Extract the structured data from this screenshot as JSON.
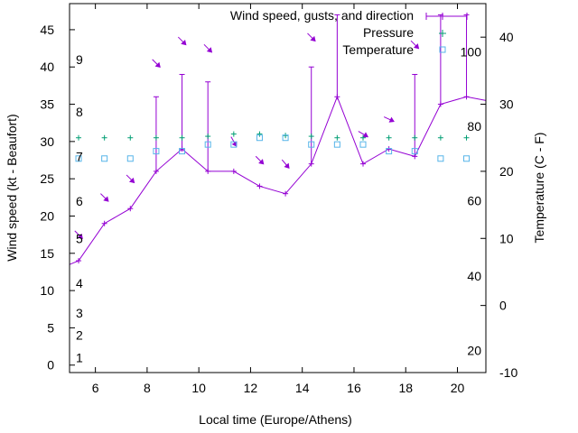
{
  "chart_data": {
    "type": "line",
    "xlabel": "Local time (Europe/Athens)",
    "ylabel": "Wind speed (kt - Beaufort)",
    "y2label": "Temperature (C - F)",
    "xlim": [
      5,
      21.1
    ],
    "ylim": [
      -1,
      48.5
    ],
    "y2lim": [
      -10,
      45
    ],
    "x_ticks": [
      6,
      8,
      10,
      12,
      14,
      16,
      18,
      20
    ],
    "y_ticks": [
      0,
      5,
      10,
      15,
      20,
      25,
      30,
      35,
      40,
      45
    ],
    "y2_ticks": [
      -10,
      0,
      10,
      20,
      30,
      40
    ],
    "beaufort_labels": [
      {
        "label": "1",
        "y": 1
      },
      {
        "label": "2",
        "y": 4
      },
      {
        "label": "3",
        "y": 7
      },
      {
        "label": "4",
        "y": 11
      },
      {
        "label": "5",
        "y": 17
      },
      {
        "label": "6",
        "y": 22
      },
      {
        "label": "7",
        "y": 28
      },
      {
        "label": "8",
        "y": 34
      },
      {
        "label": "9",
        "y": 41
      }
    ],
    "fahrenheit_labels": [
      {
        "label": "20",
        "y2": -6.7
      },
      {
        "label": "40",
        "y2": 4.4
      },
      {
        "label": "60",
        "y2": 15.6
      },
      {
        "label": "80",
        "y2": 26.7
      },
      {
        "label": "100",
        "y2": 37.8
      }
    ],
    "legend": {
      "position": "top-right",
      "wind": "Wind speed, gusts, and direction",
      "pressure": "Pressure",
      "temperature": "Temperature"
    },
    "colors": {
      "wind": "#9400d3",
      "pressure": "#009e73",
      "temperature": "#56b4e9"
    },
    "wind": {
      "x": [
        5,
        5.35,
        6.35,
        7.35,
        8.35,
        9.35,
        10.35,
        11.35,
        12.35,
        13.35,
        14.35,
        15.35,
        16.35,
        17.35,
        18.35,
        19.35,
        20.35,
        21.1
      ],
      "speed": [
        13.5,
        14,
        19,
        21,
        26,
        29,
        26,
        26,
        24,
        23,
        27,
        36,
        27,
        29,
        28,
        35,
        36,
        35.5
      ],
      "gust": [
        null,
        null,
        null,
        null,
        36,
        39,
        38,
        null,
        null,
        null,
        40,
        47,
        null,
        null,
        39,
        47,
        47,
        null
      ]
    },
    "direction_arrows": [
      {
        "x": 5.35,
        "y": 17.5,
        "dir": 315
      },
      {
        "x": 6.35,
        "y": 22.5,
        "dir": 315
      },
      {
        "x": 7.35,
        "y": 25,
        "dir": 315
      },
      {
        "x": 8.35,
        "y": 40.5,
        "dir": 315
      },
      {
        "x": 9.35,
        "y": 43.5,
        "dir": 315
      },
      {
        "x": 10.35,
        "y": 42.5,
        "dir": 315
      },
      {
        "x": 11.35,
        "y": 30,
        "dir": 330
      },
      {
        "x": 12.35,
        "y": 27.5,
        "dir": 315
      },
      {
        "x": 13.35,
        "y": 27,
        "dir": 320
      },
      {
        "x": 14.35,
        "y": 44,
        "dir": 315
      },
      {
        "x": 16.35,
        "y": 31,
        "dir": 300
      },
      {
        "x": 17.35,
        "y": 33,
        "dir": 295
      },
      {
        "x": 18.35,
        "y": 43,
        "dir": 315
      }
    ],
    "pressure": {
      "x": [
        5.35,
        6.35,
        7.35,
        8.35,
        9.35,
        10.35,
        11.35,
        12.35,
        13.35,
        14.35,
        15.35,
        16.35,
        17.35,
        18.35,
        19.35,
        20.35
      ],
      "y": [
        30.5,
        30.5,
        30.5,
        30.5,
        30.5,
        30.7,
        31,
        31,
        30.8,
        30.7,
        30.5,
        30.5,
        30.5,
        30.5,
        30.5,
        30.5
      ]
    },
    "temperature": {
      "x": [
        5.35,
        6.35,
        7.35,
        8.35,
        9.35,
        10.35,
        11.35,
        12.35,
        13.35,
        14.35,
        15.35,
        16.35,
        17.35,
        18.35,
        19.35,
        20.35
      ],
      "y": [
        21.9,
        21.9,
        21.9,
        23,
        23,
        24,
        24,
        25,
        25,
        24,
        24,
        24,
        23,
        23,
        21.9,
        21.9
      ]
    }
  }
}
